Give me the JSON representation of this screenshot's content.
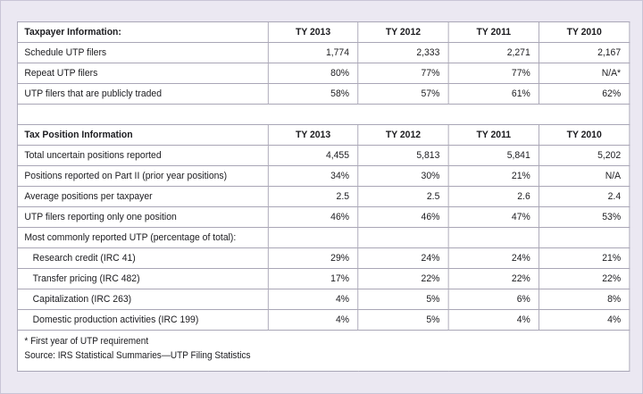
{
  "taxpayer": {
    "heading": "Taxpayer Information:",
    "years": [
      "TY 2013",
      "TY 2012",
      "TY 2011",
      "TY 2010"
    ],
    "rows": [
      {
        "label": "Schedule UTP filers",
        "values": [
          "1,774",
          "2,333",
          "2,271",
          "2,167"
        ]
      },
      {
        "label": "Repeat UTP filers",
        "values": [
          "80%",
          "77%",
          "77%",
          "N/A*"
        ]
      },
      {
        "label": "UTP filers that are publicly traded",
        "values": [
          "58%",
          "57%",
          "61%",
          "62%"
        ]
      }
    ]
  },
  "tax_position": {
    "heading": "Tax Position Information",
    "years": [
      "TY 2013",
      "TY 2012",
      "TY 2011",
      "TY 2010"
    ],
    "rows": [
      {
        "label": "Total uncertain positions reported",
        "values": [
          "4,455",
          "5,813",
          "5,841",
          "5,202"
        ]
      },
      {
        "label": "Positions reported on Part II (prior year positions)",
        "values": [
          "34%",
          "30%",
          "21%",
          "N/A"
        ]
      },
      {
        "label": "Average positions per taxpayer",
        "values": [
          "2.5",
          "2.5",
          "2.6",
          "2.4"
        ]
      },
      {
        "label": "UTP filers reporting only one position",
        "values": [
          "46%",
          "46%",
          "47%",
          "53%"
        ]
      }
    ],
    "common_label": "Most commonly reported UTP (percentage of total):",
    "common_rows": [
      {
        "label": "Research credit (IRC 41)",
        "values": [
          "29%",
          "24%",
          "24%",
          "21%"
        ]
      },
      {
        "label": "Transfer pricing (IRC 482)",
        "values": [
          "17%",
          "22%",
          "22%",
          "22%"
        ]
      },
      {
        "label": "Capitalization (IRC 263)",
        "values": [
          "4%",
          "5%",
          "6%",
          "8%"
        ]
      },
      {
        "label": "Domestic production activities (IRC 199)",
        "values": [
          "4%",
          "5%",
          "4%",
          "4%"
        ]
      }
    ]
  },
  "footer": {
    "note": "* First year of UTP requirement",
    "source": "Source: IRS Statistical Summaries—UTP Filing Statistics"
  }
}
